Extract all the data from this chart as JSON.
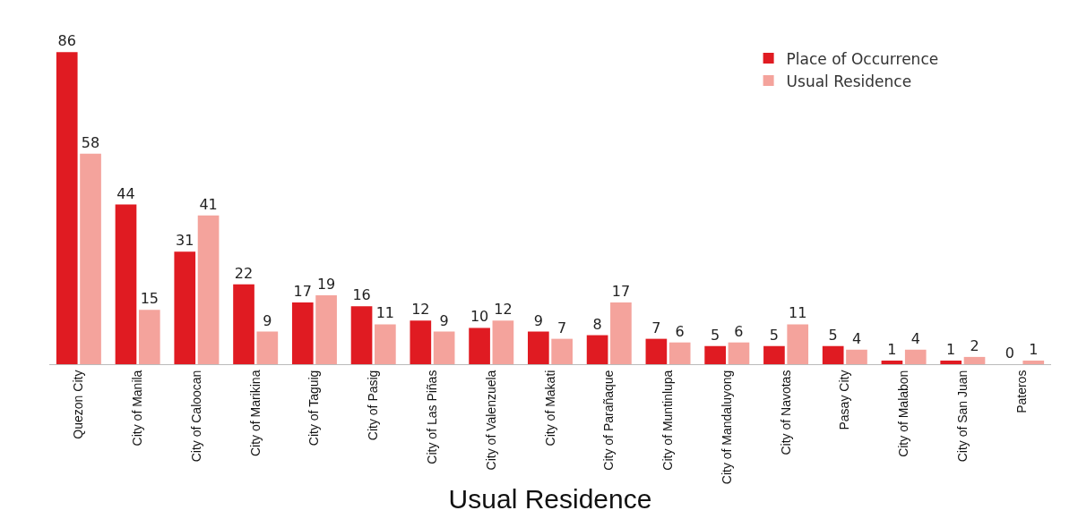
{
  "chart_data": {
    "type": "bar",
    "xlabel": "Usual Residence",
    "categories": [
      "Quezon City",
      "City of Manila",
      "City of Caloocan",
      "City of Marikina",
      "City of Taguig",
      "City of Pasig",
      "City of Las Piñas",
      "City of Valenzuela",
      "City of Makati",
      "City of Parañaque",
      "City of Muntinlupa",
      "City of Mandaluyong",
      "City of Navotas",
      "Pasay City",
      "City of Malabon",
      "City of San Juan",
      "Pateros"
    ],
    "series": [
      {
        "name": "Place of Occurrence",
        "color": "#e01b22",
        "values": [
          86,
          44,
          31,
          22,
          17,
          16,
          12,
          10,
          9,
          8,
          7,
          5,
          5,
          5,
          1,
          1,
          0
        ]
      },
      {
        "name": "Usual Residence",
        "color": "#f4a39c",
        "values": [
          58,
          15,
          41,
          9,
          19,
          11,
          9,
          12,
          7,
          17,
          6,
          6,
          11,
          4,
          4,
          2,
          1
        ]
      }
    ],
    "data_labels": true,
    "legend": "top right",
    "grid": false
  }
}
